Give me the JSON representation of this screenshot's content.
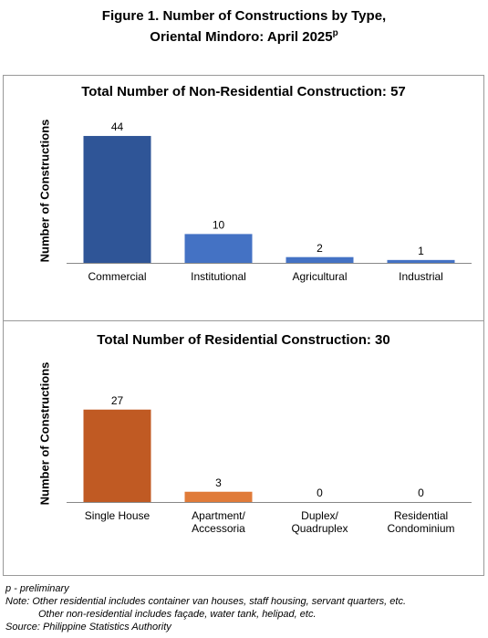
{
  "header": {
    "title_line1": "Figure 1. Number of Constructions by Type,",
    "title_line2": "Oriental Mindoro: April 2025",
    "title_superscript": "p"
  },
  "chart_data": [
    {
      "type": "bar",
      "title": "Total Number of Non-Residential Construction: 57",
      "y_label": "Number of Constructions",
      "categories": [
        "Commercial",
        "Institutional",
        "Agricultural",
        "Industrial"
      ],
      "values": [
        44,
        10,
        2,
        1
      ],
      "colors": [
        "#2f5597",
        "#4472c4",
        "#4472c4",
        "#4472c4"
      ],
      "ylim": [
        0,
        50
      ]
    },
    {
      "type": "bar",
      "title": "Total Number of Residential Construction: 30",
      "y_label": "Number of Constructions",
      "categories": [
        "Single House",
        "Apartment/\nAccessoria",
        "Duplex/\nQuadruplex",
        "Residential\nCondominium"
      ],
      "values": [
        27,
        3,
        0,
        0
      ],
      "colors": [
        "#c05a23",
        "#e07b39",
        "#e07b39",
        "#e07b39"
      ],
      "ylim": [
        0,
        40
      ]
    }
  ],
  "footer": {
    "preliminary": "p - preliminary",
    "note_line1": "Note: Other residential includes container van houses, staff housing, servant quarters, etc.",
    "note_line2": "Other non-residential includes façade, water tank, helipad, etc.",
    "source": "Source: Philippine Statistics Authority"
  }
}
